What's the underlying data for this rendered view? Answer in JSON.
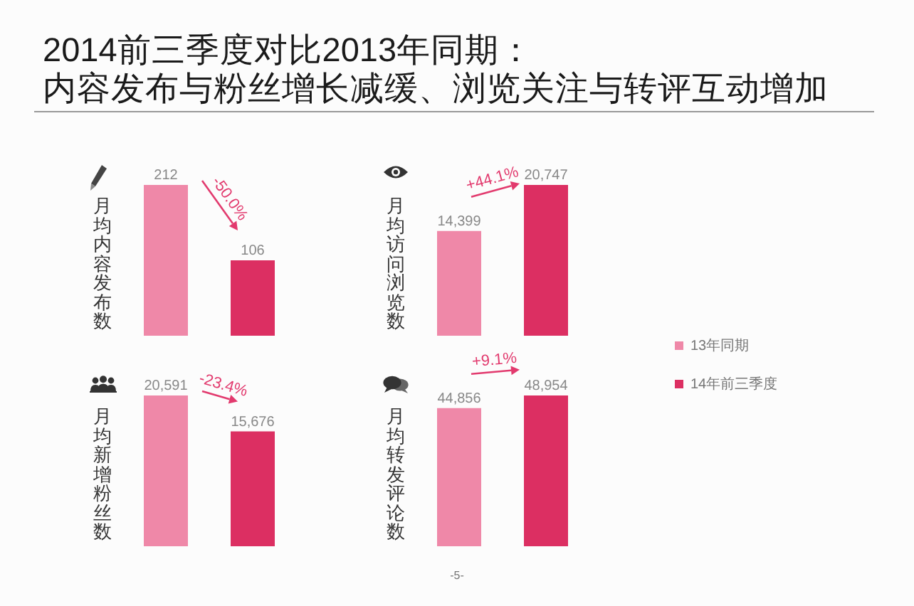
{
  "chart_data": [
    {
      "type": "bar",
      "title": "2014前三季度对比2013年同期：",
      "subtitle": "内容发布与粉丝增长减缓、浏览关注与转评互动增加",
      "ylabel": "月均内容发布数",
      "categories": [
        null,
        null
      ],
      "values": [
        212,
        106
      ],
      "colors": [
        "#ef88a8",
        "#dc2f62"
      ],
      "value_labels": [
        "212",
        "106"
      ],
      "annotations": [
        "-50.0%"
      ]
    },
    {
      "type": "bar",
      "ylabel": "月均访问浏览数",
      "categories": [
        null,
        null
      ],
      "stacked": true,
      "series": [
        {
          "name": "13年同期",
          "color": "#ef88a8",
          "values": [
            14399,
            null
          ],
          "value_labels": [
            "14,399",
            null
          ]
        },
        {
          "name": "14年前三季度",
          "color": "#dc2f62",
          "values": [
            null,
            20747
          ],
          "value_labels": [
            null,
            "20,747"
          ]
        }
      ],
      "legend": "right",
      "annotations": [
        "+44.1%"
      ]
    },
    {
      "type": "bar",
      "ylabel": "月均新增粉丝数",
      "categories": [
        null,
        null
      ],
      "values": [
        20591,
        15676
      ],
      "colors": [
        "#ef88a8",
        "#dc2f62"
      ],
      "value_labels": [
        "20,591",
        "15,676"
      ],
      "annotations": [
        "-23.4%"
      ]
    },
    {
      "type": "bar",
      "ylabel": "月均转发评论数",
      "categories": [
        null,
        null
      ],
      "values": [
        44856,
        48954
      ],
      "colors": [
        "#ef88a8",
        "#dc2f62"
      ],
      "value_labels": [
        "44,856",
        "48,954"
      ],
      "annotations": [
        "+9.1%",
        "-5-"
      ]
    }
  ]
}
